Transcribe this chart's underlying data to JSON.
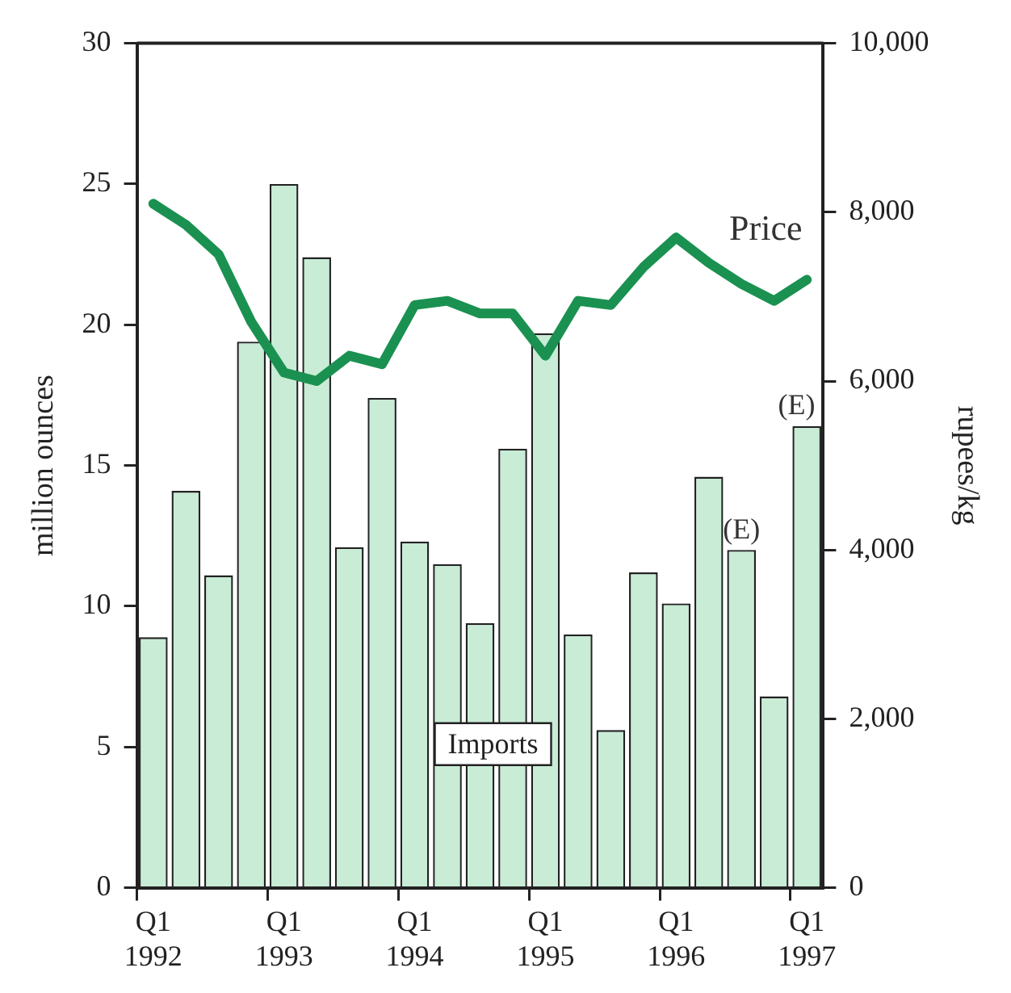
{
  "chart_data": {
    "type": "bar",
    "xlabel": null,
    "ylabel": "million ounces",
    "y2label": "rupees/kg",
    "categories": [
      "Q1 1992",
      null,
      null,
      null,
      "Q1 1993",
      null,
      null,
      null,
      "Q1 1994",
      null,
      null,
      null,
      "Q1 1995",
      null,
      null,
      null,
      "Q1 1996",
      null,
      null,
      null,
      "Q1 1997"
    ],
    "series": [
      {
        "name": "Imports",
        "color": "#c8ecd6",
        "values": [
          8.9,
          14.1,
          11.1,
          19.4,
          25.0,
          22.4,
          12.1,
          17.4,
          12.3,
          11.5,
          9.4,
          15.6,
          19.7,
          9.0,
          5.6,
          11.2,
          10.1,
          14.6,
          12.0,
          6.8,
          16.4
        ],
        "value_labels": [
          null,
          null,
          null,
          null,
          null,
          null,
          null,
          null,
          null,
          null,
          null,
          null,
          null,
          null,
          null,
          null,
          null,
          null,
          "(E)",
          null,
          "(E)"
        ]
      },
      {
        "name": "Price",
        "type": "line",
        "axis": "y2",
        "color": "#1a9150",
        "values": [
          8100,
          7850,
          7500,
          6700,
          6100,
          6000,
          6300,
          6200,
          6900,
          6950,
          6800,
          6800,
          6300,
          6950,
          6900,
          7350,
          7700,
          7400,
          7150,
          6950,
          7200
        ]
      }
    ],
    "ylim": [
      0,
      30
    ],
    "yticks": [
      0,
      5,
      10,
      15,
      20,
      25,
      30
    ],
    "y2lim": [
      0,
      10000
    ],
    "y2ticks": [
      0,
      {
        "value": 2000,
        "label": "2,000"
      },
      {
        "value": 4000,
        "label": "4,000"
      },
      {
        "value": 6000,
        "label": "6,000"
      },
      {
        "value": 8000,
        "label": "8,000"
      },
      {
        "value": 10000,
        "label": "10,000"
      }
    ],
    "grid": false,
    "legend": false,
    "marker": "none",
    "line_style": "solid"
  }
}
